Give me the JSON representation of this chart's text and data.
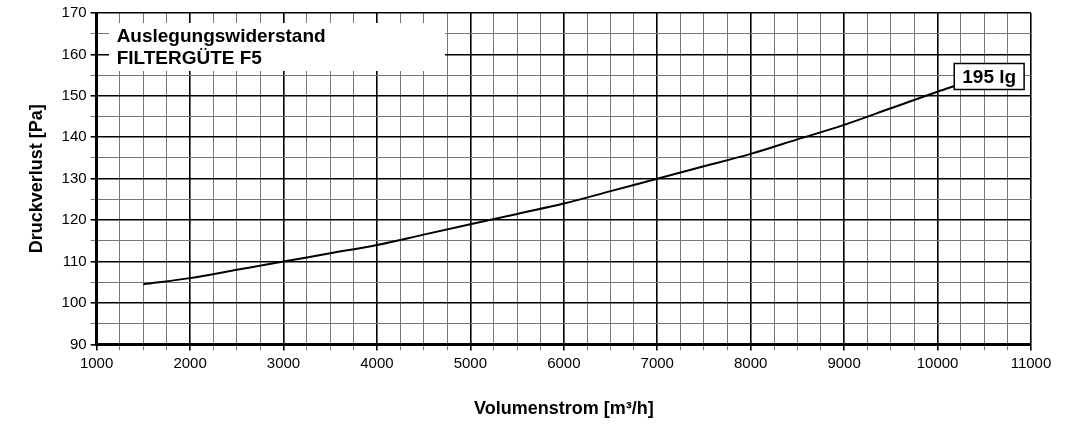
{
  "chart_data": {
    "type": "line",
    "title": "Auslegungswiderstand",
    "subtitle": "FILTERGÜTE F5",
    "xlabel": "Volumenstrom [m³/h]",
    "ylabel": "Druckverlust [Pa]",
    "series": [
      {
        "color": "#000000",
        "x": [
          1500,
          2000,
          2500,
          3000,
          3500,
          4000,
          4500,
          5000,
          5500,
          6000,
          6500,
          7000,
          7500,
          8000,
          8500,
          9000,
          9500,
          10000,
          10200
        ],
        "values": [
          104.5,
          106,
          108,
          110,
          112,
          114,
          116.5,
          119,
          121.5,
          124,
          127,
          130,
          133,
          136,
          139.5,
          143,
          147,
          151,
          152.5
        ]
      }
    ],
    "xlim": [
      1000,
      11000
    ],
    "xticks": [
      1000,
      {
        "value": 1250,
        "label": null
      },
      {
        "value": 1500,
        "label": null
      },
      {
        "value": 1750,
        "label": null
      },
      2000,
      {
        "value": 2250,
        "label": null
      },
      {
        "value": 2500,
        "label": null
      },
      {
        "value": 2750,
        "label": null
      },
      3000,
      {
        "value": 3250,
        "label": null
      },
      {
        "value": 3500,
        "label": null
      },
      {
        "value": 3750,
        "label": null
      },
      4000,
      {
        "value": 4250,
        "label": null
      },
      {
        "value": 4500,
        "label": null
      },
      {
        "value": 4750,
        "label": null
      },
      5000,
      {
        "value": 5250,
        "label": null
      },
      {
        "value": 5500,
        "label": null
      },
      {
        "value": 5750,
        "label": null
      },
      6000,
      {
        "value": 6250,
        "label": null
      },
      {
        "value": 6500,
        "label": null
      },
      {
        "value": 6750,
        "label": null
      },
      7000,
      {
        "value": 7250,
        "label": null
      },
      {
        "value": 7500,
        "label": null
      },
      {
        "value": 7750,
        "label": null
      },
      8000,
      {
        "value": 8250,
        "label": null
      },
      {
        "value": 8500,
        "label": null
      },
      {
        "value": 8750,
        "label": null
      },
      9000,
      {
        "value": 9250,
        "label": null
      },
      {
        "value": 9500,
        "label": null
      },
      {
        "value": 9750,
        "label": null
      },
      10000,
      {
        "value": 10250,
        "label": null
      },
      {
        "value": 10500,
        "label": null
      },
      {
        "value": 10750,
        "label": null
      },
      11000
    ],
    "ylim": [
      90,
      170
    ],
    "yticks": [
      90,
      {
        "value": 95,
        "label": null
      },
      100,
      {
        "value": 105,
        "label": null
      },
      110,
      {
        "value": 115,
        "label": null
      },
      120,
      {
        "value": 125,
        "label": null
      },
      130,
      {
        "value": 135,
        "label": null
      },
      140,
      {
        "value": 145,
        "label": null
      },
      150,
      {
        "value": 155,
        "label": null
      },
      160,
      {
        "value": 165,
        "label": null
      },
      170
    ],
    "grid": true,
    "legend": false,
    "marker": "none",
    "line_style": "solid",
    "annotations": [
      {
        "text": "195 lg",
        "x": 10200,
        "y": 152.5
      }
    ]
  }
}
